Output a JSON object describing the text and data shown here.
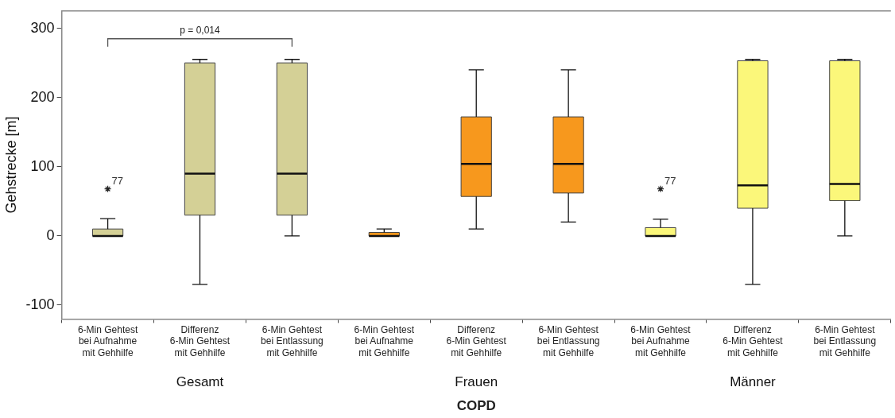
{
  "chart_data": {
    "type": "box",
    "ylabel": "Gehstrecke [m]",
    "xlabel": "COPD",
    "categories": [
      "6-Min Gehtest\nbei Aufnahme\nmit Gehhilfe",
      "Differenz\n6-Min Gehtest\nmit Gehhilfe",
      "6-Min Gehtest\nbei Entlassung\nmit Gehhilfe",
      "6-Min Gehtest\nbei Aufnahme\nmit Gehhilfe",
      "Differenz\n6-Min Gehtest\nmit Gehhilfe",
      "6-Min Gehtest\nbei Entlassung\nmit Gehhilfe",
      "6-Min Gehtest\nbei Aufnahme\nmit Gehhilfe",
      "Differenz\n6-Min Gehtest\nmit Gehhilfe",
      "6-Min Gehtest\nbei Entlassung\nmit Gehhilfe"
    ],
    "boxes": [
      {
        "low": 0,
        "q1": 0,
        "median": 0,
        "q3": 10,
        "high": 25,
        "outliers": [
          68
        ]
      },
      {
        "low": -70,
        "q1": 30,
        "median": 90,
        "q3": 250,
        "high": 255
      },
      {
        "low": 0,
        "q1": 30,
        "median": 90,
        "q3": 250,
        "high": 255
      },
      {
        "low": 0,
        "q1": 0,
        "median": 0,
        "q3": 5,
        "high": 10
      },
      {
        "low": 10,
        "q1": 57,
        "median": 104,
        "q3": 172,
        "high": 240
      },
      {
        "low": 20,
        "q1": 62,
        "median": 104,
        "q3": 172,
        "high": 240
      },
      {
        "low": 0,
        "q1": 0,
        "median": 0,
        "q3": 12,
        "high": 24,
        "outliers": [
          68
        ]
      },
      {
        "low": -70,
        "q1": 40,
        "median": 73,
        "q3": 253,
        "high": 255
      },
      {
        "low": 0,
        "q1": 51,
        "median": 75,
        "q3": 253,
        "high": 255
      }
    ],
    "colors": [
      "#d4d096",
      "#d4d096",
      "#d4d096",
      "#f7981d",
      "#f7981d",
      "#f7981d",
      "#fbf77a",
      "#fbf77a",
      "#fbf77a"
    ],
    "ylim": [
      -120,
      325
    ],
    "yticks": [
      -100,
      0,
      100,
      200,
      300
    ],
    "grid": false,
    "legend": false,
    "marker": "star",
    "annotations": [
      "p = 0,014",
      "77",
      "77",
      "Gesamt",
      "Frauen",
      "Männer"
    ]
  }
}
